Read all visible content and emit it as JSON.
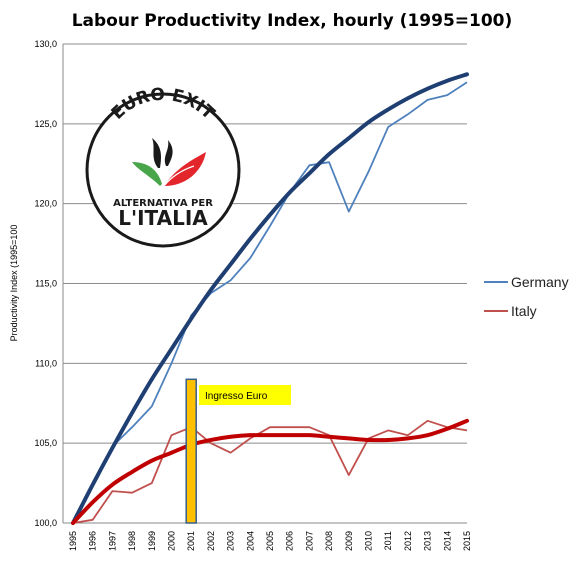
{
  "chart_data": {
    "type": "line",
    "title": "Labour Productivity Index, hourly (1995=100)",
    "ylabel": "Productivity Index (1995=100",
    "xlabel": "",
    "ylim": [
      100,
      130
    ],
    "yticks": [
      "100,0",
      "105,0",
      "110,0",
      "115,0",
      "120,0",
      "125,0",
      "130,0"
    ],
    "categories": [
      "1995",
      "1996",
      "1997",
      "1998",
      "1999",
      "2000",
      "2001",
      "2002",
      "2003",
      "2004",
      "2005",
      "2006",
      "2007",
      "2008",
      "2009",
      "2010",
      "2011",
      "2012",
      "2013",
      "2014",
      "2015"
    ],
    "grid": "horizontal",
    "legend_position": "right",
    "series": [
      {
        "name": "Germany",
        "color": "#4f81bd",
        "values": [
          100.0,
          102.3,
          104.8,
          106.0,
          107.3,
          110.0,
          113.0,
          114.4,
          115.2,
          116.6,
          118.6,
          120.7,
          122.4,
          122.6,
          119.5,
          122.0,
          124.8,
          125.6,
          126.5,
          126.8,
          127.6
        ]
      },
      {
        "name": "Italy",
        "color": "#c0504d",
        "values": [
          100.0,
          100.2,
          102.0,
          101.9,
          102.5,
          105.5,
          106.0,
          105.0,
          104.4,
          105.3,
          106.0,
          106.0,
          106.0,
          105.5,
          103.0,
          105.3,
          105.8,
          105.5,
          106.4,
          106.0,
          105.8
        ]
      }
    ],
    "trendlines": [
      {
        "color": "#1f3f73",
        "values": [
          100.0,
          102.4,
          104.7,
          106.9,
          109.0,
          110.9,
          112.8,
          114.6,
          116.2,
          117.8,
          119.3,
          120.7,
          121.9,
          123.1,
          124.1,
          125.1,
          125.9,
          126.6,
          127.2,
          127.7,
          128.1
        ]
      },
      {
        "color": "#c00000",
        "values": [
          100.0,
          101.3,
          102.4,
          103.2,
          103.9,
          104.4,
          104.9,
          105.2,
          105.4,
          105.5,
          105.5,
          105.5,
          105.5,
          105.4,
          105.3,
          105.2,
          105.2,
          105.3,
          105.5,
          105.9,
          106.4
        ]
      }
    ],
    "annotation": {
      "text": "Ingresso Euro",
      "year": "2001",
      "bar_value": 109.0
    }
  },
  "logo": {
    "top_text": "EURO EXIT",
    "middle_text": "ALTERNATIVA PER",
    "bottom_text": "L'ITALIA"
  }
}
